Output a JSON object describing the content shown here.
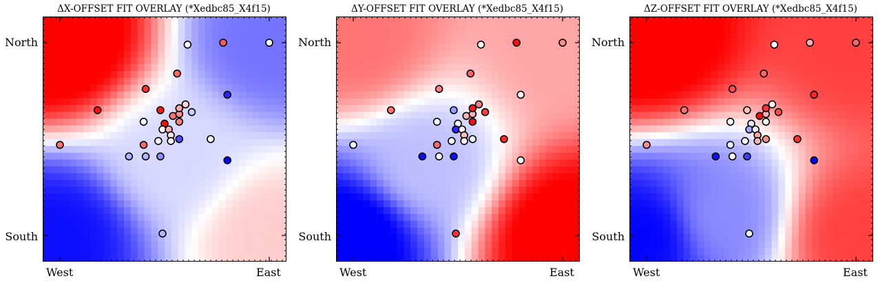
{
  "chart_data": [
    {
      "type": "scatter",
      "title": "ΔX-OFFSET FIT OVERLAY (*Xedbc85_X4f15)",
      "x_tick_labels": [
        "West",
        "East"
      ],
      "y_tick_labels": [
        "North",
        "South"
      ],
      "xlim": [
        0,
        1
      ],
      "ylim": [
        0,
        1
      ],
      "colormap": [
        "#0000ff",
        "#ffffff",
        "#ff0000"
      ],
      "background_field": {
        "description": "fitted surface",
        "centers": [
          [
            0.0,
            1.0,
            1.15
          ],
          [
            0.0,
            0.0,
            -0.95
          ],
          [
            1.0,
            1.0,
            -0.55
          ],
          [
            1.0,
            0.0,
            0.2
          ],
          [
            0.55,
            0.4,
            -0.15
          ]
        ]
      },
      "points": [
        {
          "x": 0.0,
          "y": 0.47,
          "v": 0.55
        },
        {
          "x": 0.18,
          "y": 0.65,
          "v": 0.95
        },
        {
          "x": 0.33,
          "y": 0.41,
          "v": -0.3
        },
        {
          "x": 0.41,
          "y": 0.41,
          "v": -0.3
        },
        {
          "x": 0.48,
          "y": 0.41,
          "v": -0.45
        },
        {
          "x": 0.4,
          "y": 0.47,
          "v": 0.6
        },
        {
          "x": 0.47,
          "y": 0.49,
          "v": 0.0
        },
        {
          "x": 0.4,
          "y": 0.59,
          "v": 0.0
        },
        {
          "x": 0.48,
          "y": 0.65,
          "v": 0.9
        },
        {
          "x": 0.41,
          "y": 0.76,
          "v": 0.8
        },
        {
          "x": 0.56,
          "y": 0.84,
          "v": 0.6
        },
        {
          "x": 0.61,
          "y": 0.99,
          "v": 0.0
        },
        {
          "x": 0.78,
          "y": 1.0,
          "v": 0.65
        },
        {
          "x": 1.0,
          "y": 1.0,
          "v": 0.0
        },
        {
          "x": 0.5,
          "y": 0.58,
          "v": 0.95
        },
        {
          "x": 0.49,
          "y": 0.55,
          "v": 0.0
        },
        {
          "x": 0.52,
          "y": 0.55,
          "v": 0.3
        },
        {
          "x": 0.53,
          "y": 0.52,
          "v": 0.1
        },
        {
          "x": 0.53,
          "y": 0.49,
          "v": 0.05
        },
        {
          "x": 0.54,
          "y": 0.62,
          "v": 0.55
        },
        {
          "x": 0.57,
          "y": 0.63,
          "v": 0.45
        },
        {
          "x": 0.57,
          "y": 0.66,
          "v": 0.35
        },
        {
          "x": 0.6,
          "y": 0.68,
          "v": 0.15
        },
        {
          "x": 0.63,
          "y": 0.64,
          "v": -0.2
        },
        {
          "x": 0.57,
          "y": 0.59,
          "v": 0.5
        },
        {
          "x": 0.57,
          "y": 0.5,
          "v": -0.7
        },
        {
          "x": 0.72,
          "y": 0.5,
          "v": 0.0
        },
        {
          "x": 0.8,
          "y": 0.73,
          "v": -0.85
        },
        {
          "x": 0.8,
          "y": 0.39,
          "v": -1.0
        },
        {
          "x": 0.49,
          "y": 0.01,
          "v": -0.3
        }
      ]
    },
    {
      "type": "scatter",
      "title": "ΔY-OFFSET FIT OVERLAY (*Xedbc85_X4f15)",
      "x_tick_labels": [
        "West",
        "East"
      ],
      "y_tick_labels": [
        "North",
        "South"
      ],
      "xlim": [
        0,
        1
      ],
      "ylim": [
        0,
        1
      ],
      "colormap": [
        "#0000ff",
        "#ffffff",
        "#ff0000"
      ],
      "background_field": {
        "description": "fitted surface",
        "centers": [
          [
            0.0,
            1.0,
            0.55
          ],
          [
            0.0,
            0.0,
            -1.1
          ],
          [
            1.0,
            1.0,
            0.35
          ],
          [
            1.0,
            0.0,
            1.1
          ],
          [
            0.35,
            0.35,
            -0.25
          ]
        ]
      },
      "points": [
        {
          "x": 0.0,
          "y": 0.47,
          "v": 0.0
        },
        {
          "x": 0.18,
          "y": 0.65,
          "v": 0.55
        },
        {
          "x": 0.33,
          "y": 0.41,
          "v": -0.95
        },
        {
          "x": 0.41,
          "y": 0.41,
          "v": 0.0
        },
        {
          "x": 0.48,
          "y": 0.41,
          "v": -0.95
        },
        {
          "x": 0.4,
          "y": 0.47,
          "v": 0.6
        },
        {
          "x": 0.47,
          "y": 0.49,
          "v": 0.0
        },
        {
          "x": 0.4,
          "y": 0.59,
          "v": 0.0
        },
        {
          "x": 0.48,
          "y": 0.65,
          "v": -0.4
        },
        {
          "x": 0.41,
          "y": 0.76,
          "v": 0.5
        },
        {
          "x": 0.56,
          "y": 0.84,
          "v": 0.6
        },
        {
          "x": 0.61,
          "y": 0.99,
          "v": 0.0
        },
        {
          "x": 0.78,
          "y": 1.0,
          "v": 0.95
        },
        {
          "x": 1.0,
          "y": 1.0,
          "v": 0.45
        },
        {
          "x": 0.5,
          "y": 0.58,
          "v": 0.0
        },
        {
          "x": 0.49,
          "y": 0.55,
          "v": -0.85
        },
        {
          "x": 0.52,
          "y": 0.55,
          "v": 0.05
        },
        {
          "x": 0.53,
          "y": 0.52,
          "v": 0.25
        },
        {
          "x": 0.53,
          "y": 0.49,
          "v": 0.05
        },
        {
          "x": 0.54,
          "y": 0.62,
          "v": 0.3
        },
        {
          "x": 0.57,
          "y": 0.63,
          "v": 0.3
        },
        {
          "x": 0.57,
          "y": 0.66,
          "v": 0.9
        },
        {
          "x": 0.6,
          "y": 0.68,
          "v": 0.5
        },
        {
          "x": 0.63,
          "y": 0.64,
          "v": 0.75
        },
        {
          "x": 0.57,
          "y": 0.59,
          "v": 0.95
        },
        {
          "x": 0.57,
          "y": 0.5,
          "v": 0.0
        },
        {
          "x": 0.72,
          "y": 0.5,
          "v": 0.85
        },
        {
          "x": 0.8,
          "y": 0.73,
          "v": 0.0
        },
        {
          "x": 0.8,
          "y": 0.39,
          "v": 0.0
        },
        {
          "x": 0.49,
          "y": 0.01,
          "v": 0.8
        }
      ]
    },
    {
      "type": "scatter",
      "title": "ΔZ-OFFSET FIT OVERLAY (*Xedbc85_X4f15)",
      "x_tick_labels": [
        "West",
        "East"
      ],
      "y_tick_labels": [
        "North",
        "South"
      ],
      "xlim": [
        0,
        1
      ],
      "ylim": [
        0,
        1
      ],
      "colormap": [
        "#0000ff",
        "#ffffff",
        "#ff0000"
      ],
      "background_field": {
        "description": "fitted surface",
        "centers": [
          [
            0.0,
            1.0,
            1.1
          ],
          [
            0.0,
            0.0,
            -1.0
          ],
          [
            1.0,
            1.0,
            0.75
          ],
          [
            1.0,
            0.0,
            0.75
          ],
          [
            0.35,
            0.1,
            -0.45
          ]
        ]
      },
      "points": [
        {
          "x": 0.0,
          "y": 0.47,
          "v": 0.45
        },
        {
          "x": 0.18,
          "y": 0.65,
          "v": 0.55
        },
        {
          "x": 0.33,
          "y": 0.41,
          "v": -0.95
        },
        {
          "x": 0.41,
          "y": 0.41,
          "v": 0.0
        },
        {
          "x": 0.48,
          "y": 0.41,
          "v": -0.75
        },
        {
          "x": 0.4,
          "y": 0.47,
          "v": -0.05
        },
        {
          "x": 0.47,
          "y": 0.49,
          "v": 0.0
        },
        {
          "x": 0.4,
          "y": 0.59,
          "v": 0.0
        },
        {
          "x": 0.48,
          "y": 0.65,
          "v": 0.25
        },
        {
          "x": 0.41,
          "y": 0.76,
          "v": 0.7
        },
        {
          "x": 0.56,
          "y": 0.84,
          "v": 0.6
        },
        {
          "x": 0.61,
          "y": 0.99,
          "v": 0.0
        },
        {
          "x": 0.78,
          "y": 1.0,
          "v": 0.3
        },
        {
          "x": 1.0,
          "y": 1.0,
          "v": 0.6
        },
        {
          "x": 0.5,
          "y": 0.58,
          "v": -0.1
        },
        {
          "x": 0.49,
          "y": 0.55,
          "v": -0.35
        },
        {
          "x": 0.52,
          "y": 0.55,
          "v": -0.05
        },
        {
          "x": 0.53,
          "y": 0.52,
          "v": 0.35
        },
        {
          "x": 0.53,
          "y": 0.49,
          "v": 0.3
        },
        {
          "x": 0.54,
          "y": 0.62,
          "v": 0.95
        },
        {
          "x": 0.57,
          "y": 0.63,
          "v": 0.3
        },
        {
          "x": 0.57,
          "y": 0.66,
          "v": 0.8
        },
        {
          "x": 0.6,
          "y": 0.68,
          "v": 0.0
        },
        {
          "x": 0.63,
          "y": 0.64,
          "v": 0.7
        },
        {
          "x": 0.57,
          "y": 0.59,
          "v": 0.0
        },
        {
          "x": 0.57,
          "y": 0.5,
          "v": 0.45
        },
        {
          "x": 0.72,
          "y": 0.5,
          "v": 0.8
        },
        {
          "x": 0.8,
          "y": 0.73,
          "v": 0.85
        },
        {
          "x": 0.8,
          "y": 0.39,
          "v": -1.0
        },
        {
          "x": 0.49,
          "y": 0.01,
          "v": 0.0
        }
      ]
    }
  ]
}
